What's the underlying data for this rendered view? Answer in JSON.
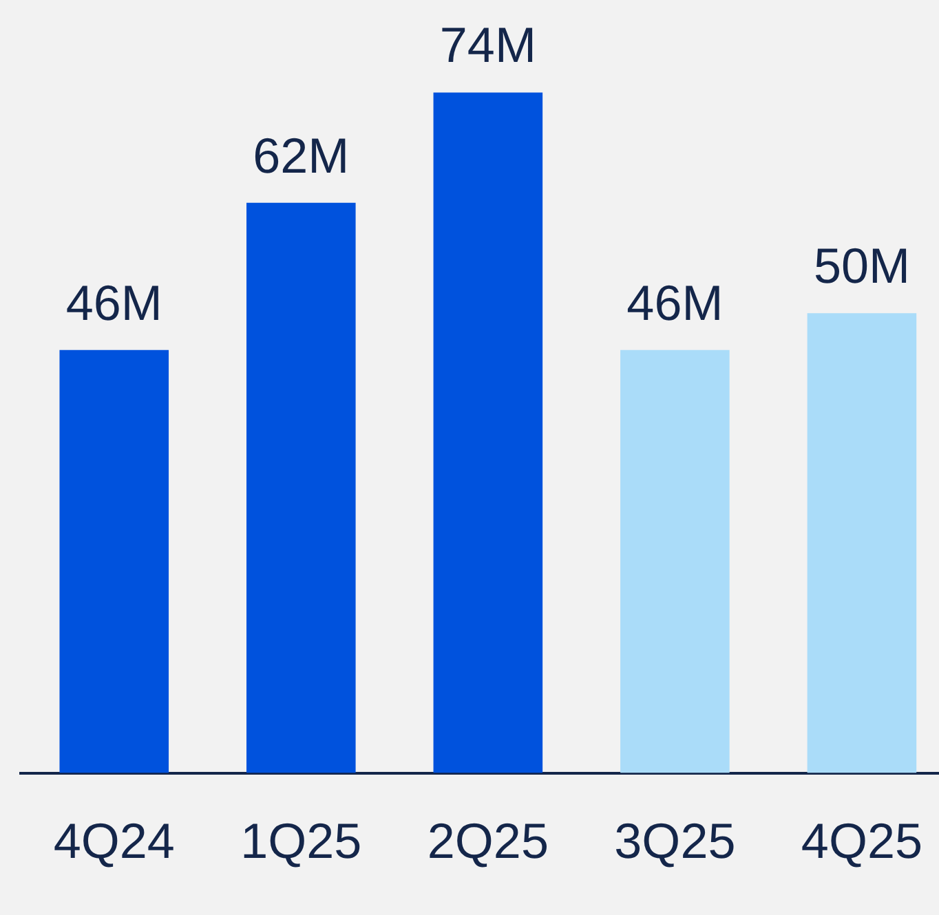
{
  "chart_data": {
    "type": "bar",
    "categories": [
      "4Q24",
      "1Q25",
      "2Q25",
      "3Q25",
      "4Q25"
    ],
    "values": [
      46,
      62,
      74,
      46,
      50
    ],
    "colors": [
      "#0052dd",
      "#0052dd",
      "#0052dd",
      "#aadcf9",
      "#aadcf9"
    ],
    "value_labels": [
      "46M",
      "62M",
      "74M",
      "46M",
      "50M"
    ],
    "grid": false,
    "legend": false
  }
}
